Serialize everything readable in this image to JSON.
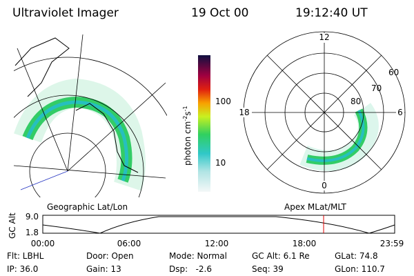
{
  "header": {
    "instrument": "Ultraviolet Imager",
    "date": "19 Oct 00",
    "time": "19:12:40 UT"
  },
  "colorbar": {
    "ticks": [
      "100",
      "10"
    ],
    "unit": [
      "photon cm",
      "-2",
      "s",
      "-1"
    ]
  },
  "left_panel": {
    "label": "Geographic Lat/Lon"
  },
  "right_panel": {
    "label": "Apex MLat/MLT",
    "mlt_labels": [
      "12",
      "18",
      "6",
      "0"
    ],
    "lat_labels": [
      "60",
      "70",
      "80"
    ]
  },
  "orbit": {
    "axis_label": "GC Alt",
    "y_labels": [
      "9.0",
      "1.8"
    ],
    "time_labels": [
      "00:00",
      "06:00",
      "12:00",
      "18:00",
      "23:59"
    ]
  },
  "status": [
    [
      "Flt: LBHL",
      "Door: Open",
      "Mode: Normal",
      "GC Alt: 6.1 Re",
      "GLat: 74.8"
    ],
    [
      "IP: 36.0",
      "Gain: 13",
      "Dsp:   -2.6",
      "Seq: 39",
      "GLon: 110.7"
    ]
  ]
}
